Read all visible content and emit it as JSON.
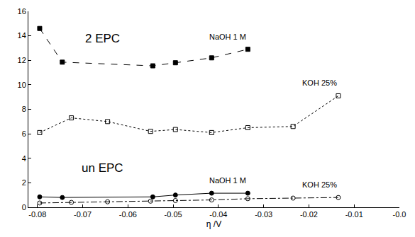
{
  "chart_data": {
    "type": "line",
    "x_label": "η /V",
    "annotations": [
      "2 EPC",
      "un EPC"
    ],
    "xlim": [
      -0.082,
      0
    ],
    "xticks": [
      -0.08,
      -0.07,
      -0.06,
      -0.05,
      -0.04,
      -0.03,
      -0.02,
      -0.01,
      {
        "value": 0,
        "label": "-0.0"
      }
    ],
    "ylim": [
      0,
      16
    ],
    "yticks": [
      0,
      2,
      4,
      6,
      8,
      10,
      12,
      14,
      16
    ],
    "grid": false,
    "series": [
      {
        "name": "NaOH 1 M",
        "color": "#000000",
        "marker": "square",
        "line_style": "dash",
        "x": [
          -0.0795,
          -0.0745,
          -0.0545,
          -0.0495,
          -0.0415,
          -0.0335
        ],
        "values": [
          14.6,
          11.85,
          11.55,
          11.8,
          12.2,
          12.9
        ]
      },
      {
        "name": "KOH 25%",
        "color": "#000000",
        "marker": "square-open",
        "line_style": "dot",
        "x": [
          -0.0795,
          -0.0725,
          -0.0645,
          -0.055,
          -0.0495,
          -0.0415,
          -0.0335,
          -0.0235,
          -0.0135
        ],
        "values": [
          6.1,
          7.3,
          7.0,
          6.2,
          6.35,
          6.1,
          6.5,
          6.6,
          9.1
        ]
      },
      {
        "name": "NaOH 1 M",
        "color": "#000000",
        "marker": "circle",
        "line_style": "solid",
        "x": [
          -0.0795,
          -0.0745,
          -0.0545,
          -0.0495,
          -0.0415,
          -0.0335
        ],
        "values": [
          0.85,
          0.8,
          0.85,
          1.0,
          1.15,
          1.15
        ]
      },
      {
        "name": "KOH 25%",
        "color": "#000000",
        "marker": "circle-open",
        "line_style": "dashdot",
        "x": [
          -0.0795,
          -0.0725,
          -0.0645,
          -0.055,
          -0.0495,
          -0.0415,
          -0.0335,
          -0.0235,
          -0.0135
        ],
        "values": [
          0.35,
          0.4,
          0.45,
          0.5,
          0.55,
          0.6,
          0.7,
          0.75,
          0.8
        ]
      }
    ]
  }
}
